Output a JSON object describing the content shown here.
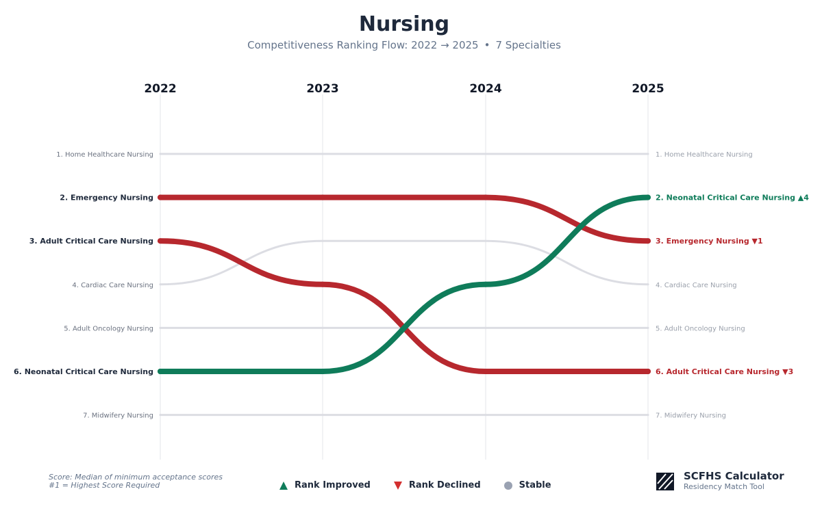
{
  "header": {
    "title": "Nursing",
    "subtitle_main": "Competitiveness Ranking Flow: 2022 → 2025",
    "subtitle_sep": "•",
    "subtitle_count": "7 Specialties"
  },
  "colors": {
    "improved": "#0f7c5a",
    "declined": "#b7282e",
    "stable": "#dcdde3",
    "axis": "#e3e5ea",
    "label_strong": "#1e293b",
    "label_muted": "#6b7280",
    "label_faded": "#9aa0ab"
  },
  "chart_data": {
    "type": "bump",
    "title": "Nursing",
    "x": [
      "2022",
      "2023",
      "2024",
      "2025"
    ],
    "rank_count": 7,
    "series": [
      {
        "name": "Home Healthcare Nursing",
        "ranks": [
          1,
          1,
          1,
          1
        ],
        "status": "stable",
        "left_label": "1. Home Healthcare Nursing",
        "right_label": "1. Home Healthcare Nursing"
      },
      {
        "name": "Emergency Nursing",
        "ranks": [
          2,
          2,
          2,
          3
        ],
        "status": "declined",
        "left_label": "2. Emergency Nursing",
        "right_label": "3. Emergency Nursing ▼1"
      },
      {
        "name": "Adult Critical Care Nursing",
        "ranks": [
          3,
          4,
          6,
          6
        ],
        "status": "declined",
        "left_label": "3. Adult Critical Care Nursing",
        "right_label": "6. Adult Critical Care Nursing ▼3"
      },
      {
        "name": "Cardiac Care Nursing",
        "ranks": [
          4,
          3,
          3,
          4
        ],
        "status": "stable",
        "left_label": "4. Cardiac Care Nursing",
        "right_label": "4. Cardiac Care Nursing"
      },
      {
        "name": "Adult Oncology Nursing",
        "ranks": [
          5,
          5,
          5,
          5
        ],
        "status": "stable",
        "left_label": "5. Adult Oncology Nursing",
        "right_label": "5. Adult Oncology Nursing"
      },
      {
        "name": "Neonatal Critical Care Nursing",
        "ranks": [
          6,
          6,
          4,
          2
        ],
        "status": "improved",
        "left_label": "6. Neonatal Critical Care Nursing",
        "right_label": "2. Neonatal Critical Care Nursing ▲4"
      },
      {
        "name": "Midwifery Nursing",
        "ranks": [
          7,
          7,
          7,
          7
        ],
        "status": "stable",
        "left_label": "7. Midwifery Nursing",
        "right_label": "7. Midwifery Nursing"
      }
    ]
  },
  "footer": {
    "note_line1": "Score: Median of minimum acceptance scores",
    "note_line2": "#1 = Highest Score Required",
    "legend": {
      "improved_label": "Rank Improved",
      "declined_label": "Rank Declined",
      "stable_label": "Stable"
    },
    "brand_name": "SCFHS Calculator",
    "brand_tagline": "Residency Match Tool"
  }
}
